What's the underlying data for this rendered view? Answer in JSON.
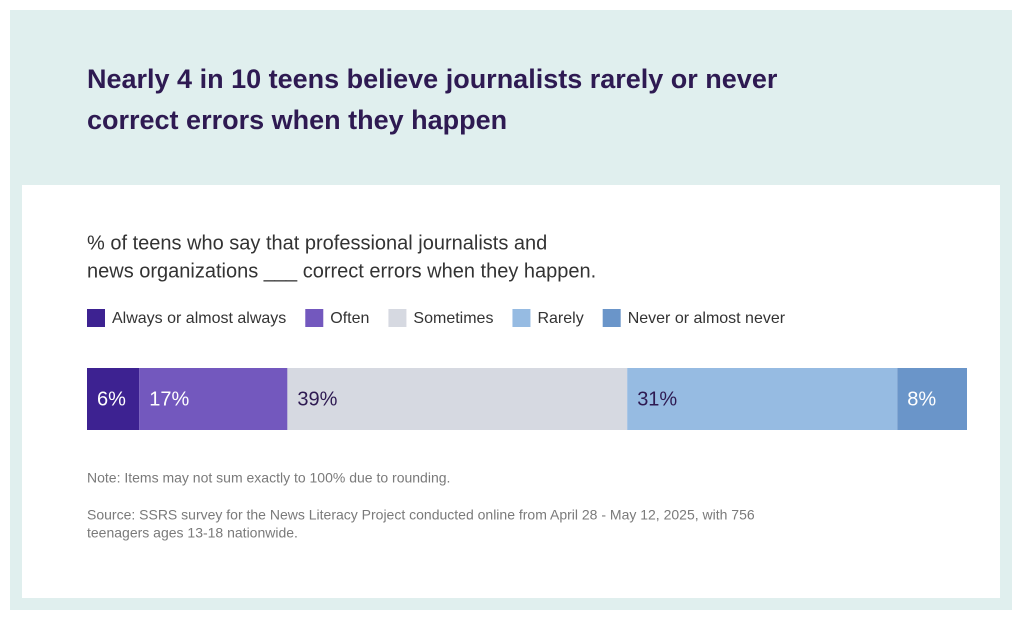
{
  "chart_data": {
    "type": "bar",
    "orientation": "horizontal",
    "stacked": true,
    "title": [
      "Nearly 4 in 10 teens believe journalists rarely or never",
      "correct errors when they happen"
    ],
    "subtitle": [
      "% of teens who say that professional journalists and",
      "news organizations ___ correct errors when they happen."
    ],
    "series": [
      {
        "name": "Always or almost always",
        "color": "#3d2291",
        "label_color": "#ffffff",
        "values": [
          6
        ],
        "value_labels": [
          "6%"
        ]
      },
      {
        "name": "Often",
        "color": "#7358be",
        "label_color": "#ffffff",
        "values": [
          17
        ],
        "value_labels": [
          "17%"
        ]
      },
      {
        "name": "Sometimes",
        "color": "#d6d9e1",
        "label_color": "#2e1a52",
        "values": [
          39
        ],
        "value_labels": [
          "39%"
        ]
      },
      {
        "name": "Rarely",
        "color": "#96bbe2",
        "label_color": "#2e1a52",
        "values": [
          31
        ],
        "value_labels": [
          "31%"
        ]
      },
      {
        "name": "Never or almost never",
        "color": "#6a95c9",
        "label_color": "#ffffff",
        "values": [
          8
        ],
        "value_labels": [
          "8%"
        ]
      }
    ],
    "note": "Note: Items may not sum exactly to 100% due to rounding.",
    "source": [
      "Source: SSRS survey for the News Literacy Project conducted online from April 28 - May 12, 2025, with 756",
      "teenagers ages 13-18 nationwide."
    ]
  }
}
